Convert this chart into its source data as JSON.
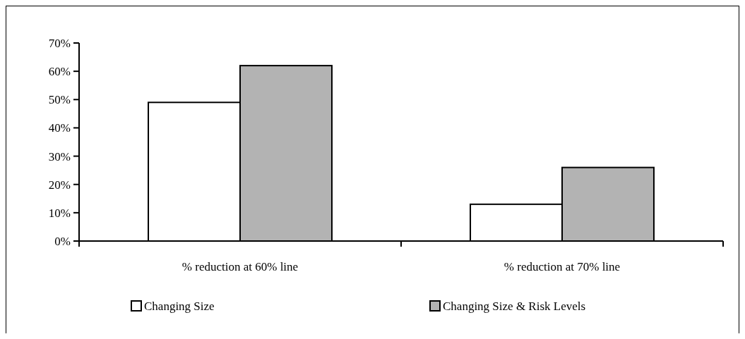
{
  "chart_data": {
    "type": "bar",
    "categories": [
      "% reduction at 60% line",
      "% reduction at 70% line"
    ],
    "series": [
      {
        "name": "Changing Size",
        "color": "#ffffff",
        "values": [
          49,
          13
        ]
      },
      {
        "name": "Changing Size & Risk Levels",
        "color": "#b3b3b3",
        "values": [
          62,
          26
        ]
      }
    ],
    "ylim": [
      0,
      70
    ],
    "yticks": [
      {
        "value": 0,
        "label": "0%"
      },
      {
        "value": 10,
        "label": "10%"
      },
      {
        "value": 20,
        "label": "20%"
      },
      {
        "value": 30,
        "label": "30%"
      },
      {
        "value": 40,
        "label": "40%"
      },
      {
        "value": 50,
        "label": "50%"
      },
      {
        "value": 60,
        "label": "60%"
      },
      {
        "value": 70,
        "label": "70%"
      }
    ],
    "grid": false,
    "legend": "bottom"
  }
}
